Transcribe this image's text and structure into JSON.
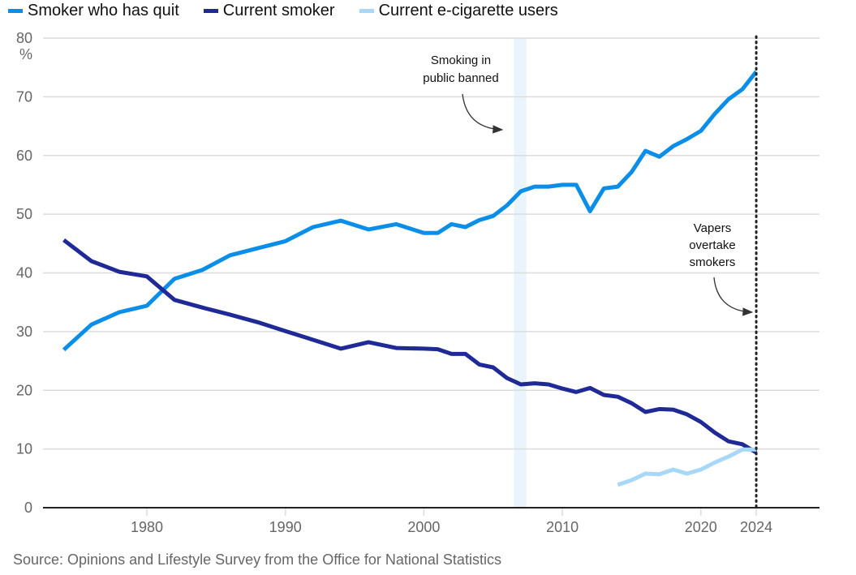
{
  "legend": [
    {
      "label": "Smoker who has quit",
      "color": "#0a8ee8"
    },
    {
      "label": "Current smoker",
      "color": "#1f2a96"
    },
    {
      "label": "Current e-cigarette users",
      "color": "#a8d8f8"
    }
  ],
  "source": "Source: Opinions and Lifestyle Survey from the Office for National Statistics",
  "chart_data": {
    "type": "line",
    "title": "",
    "xlabel": "",
    "ylabel": "%",
    "xlim": [
      1972.5,
      2028.5
    ],
    "ylim": [
      0,
      80
    ],
    "grid": true,
    "legend_position": "top-left",
    "x_ticks": [
      1980,
      1990,
      2000,
      2010,
      2020,
      2024
    ],
    "x_tick_labels": [
      "1980",
      "1990",
      "2000",
      "2010",
      "2020",
      "2024"
    ],
    "y_ticks": [
      0,
      10,
      20,
      30,
      40,
      50,
      60,
      70,
      80
    ],
    "y_tick_labels": [
      "0",
      "10",
      "20",
      "30",
      "40",
      "50",
      "60",
      "70",
      "80"
    ],
    "y_unit_label": "%",
    "series": [
      {
        "name": "Smoker who has quit",
        "color": "#0a8ee8",
        "x": [
          1974,
          1976,
          1978,
          1980,
          1982,
          1984,
          1986,
          1988,
          1990,
          1992,
          1994,
          1996,
          1998,
          2000,
          2001,
          2002,
          2003,
          2004,
          2005,
          2006,
          2007,
          2008,
          2009,
          2010,
          2011,
          2012,
          2013,
          2014,
          2015,
          2016,
          2017,
          2018,
          2019,
          2020,
          2021,
          2022,
          2023,
          2024
        ],
        "values": [
          26.9,
          31.2,
          33.3,
          34.4,
          39.0,
          40.5,
          43.0,
          44.2,
          45.4,
          47.8,
          48.9,
          47.4,
          48.3,
          46.8,
          46.8,
          48.3,
          47.8,
          49.0,
          49.7,
          51.5,
          53.9,
          54.7,
          54.7,
          55.0,
          55.0,
          50.5,
          54.4,
          54.7,
          57.2,
          60.8,
          59.8,
          61.6,
          62.8,
          64.2,
          67.1,
          69.6,
          71.3,
          74.3
        ]
      },
      {
        "name": "Current smoker",
        "color": "#1f2a96",
        "x": [
          1974,
          1976,
          1978,
          1980,
          1982,
          1984,
          1986,
          1988,
          1990,
          1992,
          1994,
          1996,
          1998,
          2000,
          2001,
          2002,
          2003,
          2004,
          2005,
          2006,
          2007,
          2008,
          2009,
          2010,
          2011,
          2012,
          2013,
          2014,
          2015,
          2016,
          2017,
          2018,
          2019,
          2020,
          2021,
          2022,
          2023,
          2024
        ],
        "values": [
          45.6,
          42.0,
          40.2,
          39.4,
          35.4,
          34.1,
          32.9,
          31.6,
          30.1,
          28.6,
          27.1,
          28.2,
          27.2,
          27.1,
          27.0,
          26.2,
          26.2,
          24.4,
          23.9,
          22.1,
          21.0,
          21.2,
          21.0,
          20.3,
          19.7,
          20.4,
          19.2,
          18.9,
          17.8,
          16.3,
          16.8,
          16.7,
          15.9,
          14.6,
          12.8,
          11.3,
          10.8,
          9.4
        ]
      },
      {
        "name": "Current e-cigarette users",
        "color": "#a8d8f8",
        "x": [
          2014,
          2015,
          2016,
          2017,
          2018,
          2019,
          2020,
          2021,
          2022,
          2023,
          2024
        ],
        "values": [
          3.9,
          4.7,
          5.8,
          5.7,
          6.5,
          5.8,
          6.5,
          7.7,
          8.7,
          9.9,
          9.9
        ]
      }
    ],
    "annotations": [
      {
        "name": "smoking-ban",
        "text_lines": [
          "Smoking in",
          "public banned"
        ],
        "x_band": [
          2006.5,
          2007.4
        ],
        "band_color": "#eaf4fd",
        "arrow_target": [
          2006.3,
          64
        ]
      },
      {
        "name": "vapers-overtake",
        "text_lines": [
          "Vapers",
          "overtake",
          "smokers"
        ],
        "vline_x": 2024,
        "vline_style": "dotted",
        "arrow_target": [
          2023.9,
          33
        ]
      }
    ]
  }
}
